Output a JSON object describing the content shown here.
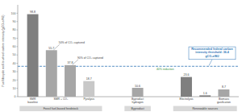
{
  "chart_data": {
    "type": "bar",
    "y_label": "Fuel lifecycle well-to-wheel carbon intensity (gCO₂e/MJ)",
    "categories": [
      "SMR baseline",
      "SMR + CO₂",
      null,
      "Pyrolysis",
      "Byproduct hydrogen",
      "Electrolysis",
      null,
      "Biomass gasification"
    ],
    "values": [
      98.8,
      55.7,
      37.8,
      18.7,
      10.6,
      23.6,
      1.6,
      8.7
    ],
    "colors": [
      "#7f7f7f",
      "#a6a6a6",
      "#a6a6a6",
      "#c8c8c8",
      "#a6a6a6",
      "#7f7f7f",
      "#7f7f7f",
      "#a6a6a6"
    ],
    "bar_notes": [
      null,
      "50% of CO₂ captured",
      "90% of CO₂ captured",
      null,
      null,
      null,
      null,
      null
    ],
    "groups": [
      {
        "label": "Fossil fuel-based feedstock",
        "count": 4
      },
      {
        "label": "Byproduct",
        "count": 1
      },
      {
        "label": "Renewable sources",
        "count": 3
      }
    ],
    "reference_line": {
      "value": 36.4,
      "color": "#2e75b6",
      "label": "Recommended federal carbon intensity threshold: 36.4 gCO₂e/MJ",
      "note": "40% reduction"
    },
    "ylim": [
      0,
      110
    ],
    "yticks": [
      0,
      10,
      20,
      30,
      40,
      50,
      60,
      70,
      80,
      90,
      100
    ],
    "grid": false,
    "data_labels": true
  }
}
